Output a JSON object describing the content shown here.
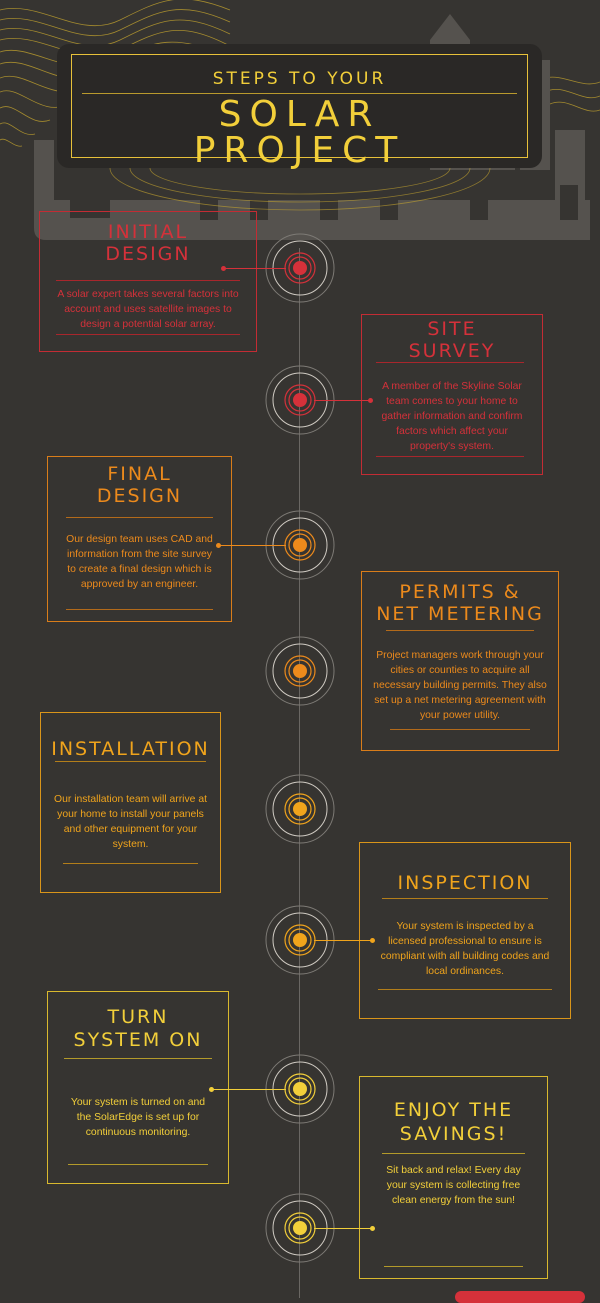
{
  "header": {
    "subtitle": "STEPS TO YOUR",
    "title_line1": "SOLAR",
    "title_line2": "PROJECT"
  },
  "colors": {
    "background": "#363431",
    "red": "#d5313a",
    "orange": "#ec8a1c",
    "amber": "#f0a41c",
    "yellow": "#f2cf3a"
  },
  "steps": [
    {
      "title1": "INITIAL",
      "title2": "DESIGN",
      "body": "A solar expert takes several factors into account and uses satellite images to design a potential solar array."
    },
    {
      "title1": "SITE",
      "title2": "SURVEY",
      "body": "A member of the Skyline Solar team comes to your home to gather information and confirm factors which affect your property's system."
    },
    {
      "title1": "FINAL",
      "title2": "DESIGN",
      "body": "Our design team uses CAD and information from the site survey to create a final design which is approved by an engineer."
    },
    {
      "title1": "PERMITS &",
      "title2": "NET METERING",
      "body": "Project managers work through your cities or counties to acquire all necessary building permits.  They also set up a net metering agreement with your power utility."
    },
    {
      "title1": "INSTALLATION",
      "title2": "",
      "body": "Our installation team will arrive at your home to install your panels and other equipment for your system."
    },
    {
      "title1": "INSPECTION",
      "title2": "",
      "body": "Your system is inspected by a licensed professional to ensure is compliant with all building codes and local ordinances."
    },
    {
      "title1": "TURN",
      "title2": "SYSTEM ON",
      "body": "Your system is turned on and the SolarEdge is set up for continuous monitoring."
    },
    {
      "title1": "ENJOY THE",
      "title2": "SAVINGS!",
      "body": "Sit back and relax! Every day your system is collecting free clean energy from the sun!"
    }
  ]
}
